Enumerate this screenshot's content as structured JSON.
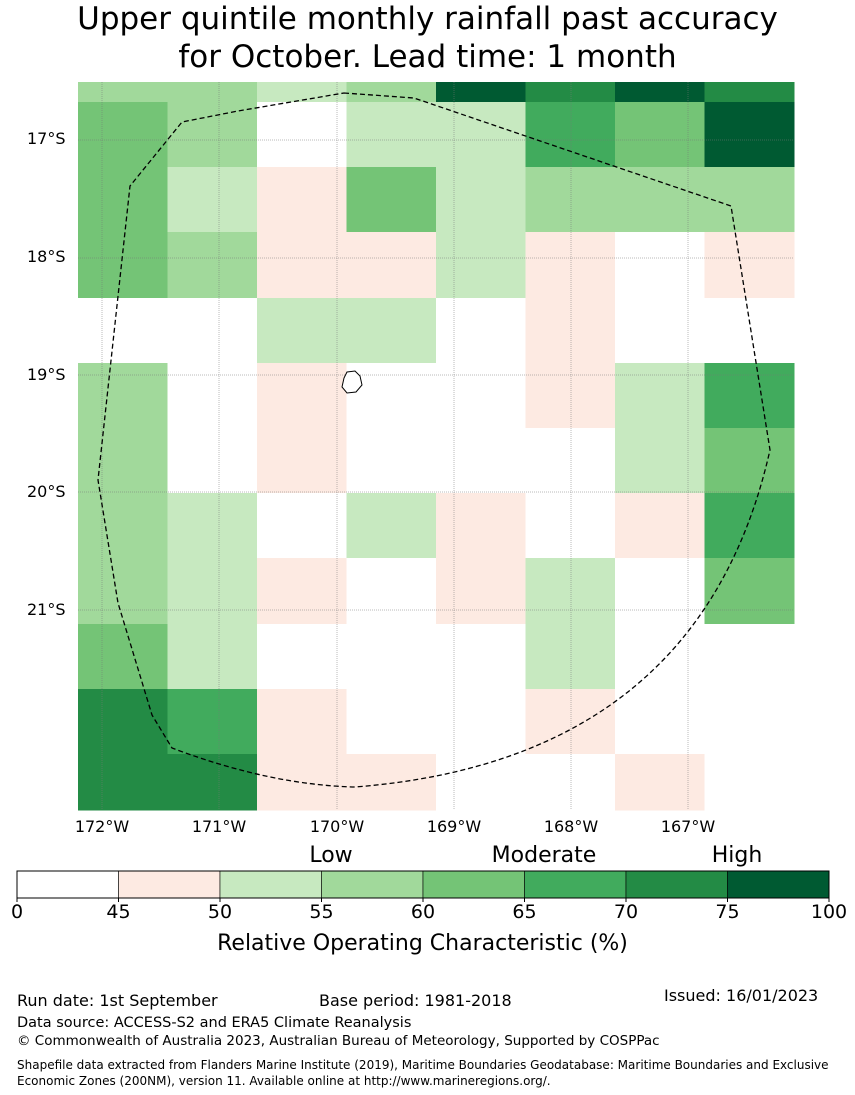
{
  "title_line1": "Upper quintile monthly rainfall past accuracy",
  "title_line2": "for October. Lead time: 1 month",
  "map": {
    "lat_labels": [
      "17°S",
      "18°S",
      "19°S",
      "20°S",
      "21°S"
    ],
    "lon_labels": [
      "172°W",
      "171°W",
      "170°W",
      "169°W",
      "168°W",
      "167°W"
    ],
    "grid_values": [
      [
        57.5,
        57.5,
        52.5,
        57.5,
        85,
        72.5,
        85,
        72.5
      ],
      [
        62.5,
        57.5,
        40,
        52.5,
        52.5,
        67.5,
        62.5,
        85
      ],
      [
        62.5,
        52.5,
        47.5,
        62.5,
        52.5,
        57.5,
        57.5,
        57.5
      ],
      [
        62.5,
        57.5,
        47.5,
        47.5,
        52.5,
        47.5,
        40,
        47.5
      ],
      [
        40,
        40,
        52.5,
        52.5,
        40,
        47.5,
        40,
        40
      ],
      [
        57.5,
        40,
        47.5,
        40,
        40,
        47.5,
        52.5,
        67.5
      ],
      [
        57.5,
        40,
        47.5,
        40,
        40,
        40,
        52.5,
        62.5
      ],
      [
        57.5,
        52.5,
        40,
        52.5,
        47.5,
        40,
        47.5,
        67.5
      ],
      [
        57.5,
        52.5,
        47.5,
        40,
        47.5,
        52.5,
        40,
        62.5
      ],
      [
        62.5,
        52.5,
        40,
        40,
        40,
        52.5,
        40,
        40
      ],
      [
        72.5,
        67.5,
        47.5,
        40,
        40,
        47.5,
        40,
        40
      ],
      [
        72.5,
        72.5,
        47.5,
        47.5,
        40,
        40,
        47.5,
        40
      ]
    ]
  },
  "colorbar": {
    "categories": [
      "Low",
      "Moderate",
      "High"
    ],
    "bounds": [
      0,
      45,
      50,
      55,
      60,
      65,
      70,
      75,
      100
    ],
    "tick_labels": [
      "0",
      "45",
      "50",
      "55",
      "60",
      "65",
      "70",
      "75",
      "100"
    ],
    "colors": [
      "#ffffff",
      "#fdeae2",
      "#c7e9c0",
      "#a1d99b",
      "#74c476",
      "#41ab5d",
      "#238b45",
      "#005a32"
    ],
    "label": "Relative Operating Characteristic (%)"
  },
  "footer": {
    "run_date": "Run date: 1st September",
    "base_period": "Base period: 1981-2018",
    "issued": "Issued: 16/01/2023",
    "data_source": "Data source: ACCESS-S2 and ERA5 Climate Reanalysis",
    "copyright": "© Commonwealth of Australia 2023, Australian Bureau of Meteorology, Supported by COSPPac",
    "shapefile_line1": "Shapefile data extracted from Flanders Marine Institute (2019), Maritime Boundaries Geodatabase: Maritime Boundaries and Exclusive",
    "shapefile_line2": "Economic Zones (200NM), version 11. Available online at http://www.marineregions.org/."
  }
}
